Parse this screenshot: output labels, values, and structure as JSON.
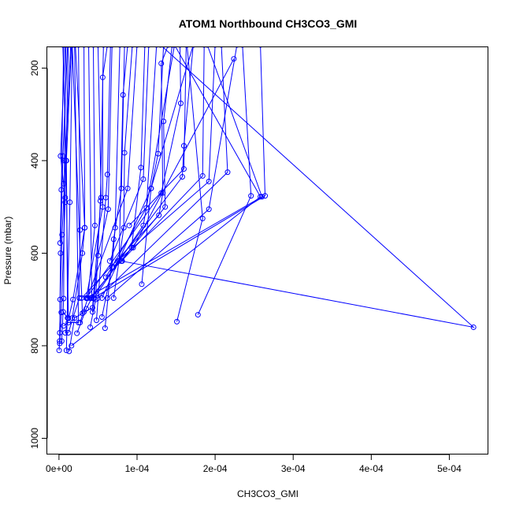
{
  "chart_data": {
    "type": "line",
    "title": "ATOM1 Northbound CH3CO3_GMI",
    "xlabel": "CH3CO3_GMI",
    "ylabel": "Pressure (mbar)",
    "xlim": [
      -1.5e-05,
      0.00055
    ],
    "ylim": [
      1035,
      155
    ],
    "y_reversed": true,
    "x_ticks": [
      0,
      0.0001,
      0.0002,
      0.0003,
      0.0004,
      0.0005
    ],
    "x_tick_labels": [
      "0e+00",
      "1e-04",
      "2e-04",
      "3e-04",
      "4e-04",
      "5e-04"
    ],
    "y_ticks": [
      200,
      400,
      600,
      800,
      1000
    ],
    "y_tick_labels": [
      "200",
      "400",
      "600",
      "800",
      "1000"
    ],
    "grid": false,
    "series_color": "#0000ff",
    "series": [
      {
        "values": [
          [
            2e-07,
            810
          ],
          [
            8e-07,
            790
          ],
          [
            1.5e-06,
            700
          ],
          [
            4e-06,
            560
          ],
          [
            1.5e-05,
            150
          ]
        ]
      },
      {
        "values": [
          [
            1e-06,
            795
          ],
          [
            3e-06,
            728
          ],
          [
            8e-06,
            480
          ],
          [
            1.2e-05,
            150
          ]
        ]
      },
      {
        "values": [
          [
            3.5e-06,
            790
          ],
          [
            6e-06,
            698
          ],
          [
            7e-06,
            400
          ],
          [
            9e-06,
            150
          ]
        ]
      },
      {
        "values": [
          [
            1e-06,
            772
          ],
          [
            2e-06,
            600
          ],
          [
            5e-06,
            390
          ],
          [
            1.1e-05,
            150
          ]
        ]
      },
      {
        "values": [
          [
            5.5e-06,
            727
          ],
          [
            1.1e-05,
            740
          ],
          [
            9.5e-06,
            400
          ],
          [
            1.6e-05,
            150
          ]
        ]
      },
      {
        "values": [
          [
            9.5e-06,
            810
          ],
          [
            1.4e-05,
            490
          ],
          [
            1.7e-05,
            150
          ]
        ]
      },
      {
        "values": [
          [
            1.3e-05,
            812
          ],
          [
            2e-05,
            740
          ],
          [
            3e-05,
            730
          ],
          [
            1.7e-05,
            150
          ]
        ]
      },
      {
        "values": [
          [
            6e-06,
            757
          ],
          [
            1.2e-05,
            750
          ],
          [
            2.5e-05,
            750
          ],
          [
            2e-05,
            150
          ]
        ]
      },
      {
        "values": [
          [
            8e-06,
            772
          ],
          [
            1.8e-05,
            700
          ],
          [
            3.3e-05,
            545
          ],
          [
            2.1e-05,
            150
          ]
        ]
      },
      {
        "values": [
          [
            1.2e-05,
            772
          ],
          [
            2.6e-05,
            697
          ],
          [
            2.7e-05,
            550
          ],
          [
            2.5e-05,
            150
          ]
        ]
      },
      {
        "values": [
          [
            1.7e-05,
            740
          ],
          [
            3e-05,
            600
          ],
          [
            3.3e-05,
            545
          ],
          [
            3.2e-05,
            150
          ]
        ]
      },
      {
        "values": [
          [
            2.3e-05,
            773
          ],
          [
            3.5e-05,
            720
          ],
          [
            4.2e-05,
            697
          ],
          [
            3.8e-05,
            150
          ]
        ]
      },
      {
        "values": [
          [
            2.7e-05,
            750
          ],
          [
            3.7e-05,
            697
          ],
          [
            4.6e-05,
            540
          ],
          [
            4.4e-05,
            150
          ]
        ]
      },
      {
        "values": [
          [
            3.2e-05,
            727
          ],
          [
            4.3e-05,
            718
          ],
          [
            5.4e-05,
            480
          ],
          [
            5e-05,
            150
          ]
        ]
      },
      {
        "values": [
          [
            4e-05,
            760
          ],
          [
            4.7e-05,
            700
          ],
          [
            5.3e-05,
            487
          ],
          [
            5.7e-05,
            150
          ]
        ]
      },
      {
        "values": [
          [
            4.8e-05,
            745
          ],
          [
            6e-05,
            480
          ],
          [
            6.2e-05,
            430
          ],
          [
            6.6e-05,
            150
          ]
        ]
      },
      {
        "values": [
          [
            3.5e-05,
            697
          ],
          [
            5.6e-05,
            500
          ],
          [
            5.6e-05,
            220
          ],
          [
            6.2e-05,
            150
          ]
        ]
      },
      {
        "values": [
          [
            4.3e-05,
            727
          ],
          [
            5e-05,
            605
          ],
          [
            6.3e-05,
            505
          ],
          [
            6.8e-05,
            150
          ]
        ]
      },
      {
        "values": [
          [
            5.5e-05,
            738
          ],
          [
            6.8e-05,
            630
          ],
          [
            7.2e-05,
            545
          ],
          [
            7.8e-05,
            150
          ]
        ]
      },
      {
        "values": [
          [
            5.9e-05,
            762
          ],
          [
            7e-05,
            570
          ],
          [
            8e-05,
            460
          ],
          [
            8.4e-05,
            150
          ]
        ]
      },
      {
        "values": [
          [
            4.2e-05,
            697
          ],
          [
            7.7e-05,
            617
          ],
          [
            8.2e-05,
            258
          ],
          [
            8.8e-05,
            150
          ]
        ]
      },
      {
        "values": [
          [
            7e-05,
            697
          ],
          [
            8.3e-05,
            545
          ],
          [
            8.4e-05,
            383
          ],
          [
            9.4e-05,
            150
          ]
        ]
      },
      {
        "values": [
          [
            3.6e-05,
            697
          ],
          [
            8.8e-05,
            460
          ],
          [
            0.0001,
            150
          ]
        ]
      },
      {
        "values": [
          [
            8.1e-05,
            617
          ],
          [
            9.3e-05,
            588
          ],
          [
            0.000105,
            415
          ],
          [
            0.00011,
            150
          ]
        ]
      },
      {
        "values": [
          [
            6.5e-05,
            617
          ],
          [
            0.000108,
            440
          ],
          [
            0.000115,
            150
          ]
        ]
      },
      {
        "values": [
          [
            6e-05,
            652
          ],
          [
            0.000112,
            502
          ],
          [
            0.000125,
            150
          ]
        ]
      },
      {
        "values": [
          [
            0.000106,
            667
          ],
          [
            0.000118,
            460
          ],
          [
            0.000127,
            385
          ],
          [
            0.000134,
            150
          ]
        ]
      },
      {
        "values": [
          [
            2.9e-05,
            697
          ],
          [
            0.000128,
            518
          ],
          [
            0.000133,
            470
          ],
          [
            0.000131,
            190
          ],
          [
            0.00014,
            150
          ]
        ]
      },
      {
        "values": [
          [
            4e-05,
            697
          ],
          [
            0.000136,
            500
          ],
          [
            0.000134,
            315
          ],
          [
            0.000145,
            150
          ]
        ]
      },
      {
        "values": [
          [
            3.5e-05,
            697
          ],
          [
            0.000131,
            470
          ],
          [
            0.000156,
            276
          ],
          [
            0.000155,
            150
          ]
        ]
      },
      {
        "values": [
          [
            9e-05,
            540
          ],
          [
            0.00016,
            418
          ],
          [
            0.000163,
            150
          ]
        ]
      },
      {
        "values": [
          [
            7e-05,
            630
          ],
          [
            0.000158,
            435
          ],
          [
            0.00016,
            368
          ],
          [
            0.000172,
            150
          ]
        ]
      },
      {
        "values": [
          [
            8e-05,
            617
          ],
          [
            0.000184,
            433
          ],
          [
            0.000186,
            150
          ]
        ]
      },
      {
        "values": [
          [
            7.5e-05,
            617
          ],
          [
            0.000192,
            445
          ],
          [
            0.0002,
            150
          ]
        ]
      },
      {
        "values": [
          [
            5e-05,
            697
          ],
          [
            0.000216,
            425
          ],
          [
            0.000208,
            150
          ]
        ]
      },
      {
        "values": [
          [
            9.5e-05,
            588
          ],
          [
            0.000224,
            180
          ]
        ]
      },
      {
        "values": [
          [
            5.5e-05,
            697
          ],
          [
            0.000118,
            460
          ],
          [
            0.000172,
            150
          ]
        ]
      },
      {
        "values": [
          [
            4.5e-05,
            697
          ],
          [
            0.000108,
            540
          ],
          [
            0.000148,
            150
          ]
        ]
      },
      {
        "values": [
          [
            0.000151,
            748
          ],
          [
            0.000184,
            525
          ],
          [
            0.000164,
            150
          ]
        ]
      },
      {
        "values": [
          [
            0.000178,
            733
          ],
          [
            0.000246,
            476
          ],
          [
            0.000235,
            150
          ]
        ]
      },
      {
        "values": [
          [
            6.2e-05,
            697
          ],
          [
            0.000192,
            505
          ],
          [
            0.000228,
            150
          ]
        ]
      },
      {
        "values": [
          [
            4.4e-05,
            697
          ],
          [
            0.000264,
            476
          ],
          [
            0.000258,
            150
          ]
        ]
      },
      {
        "values": [
          [
            1.6e-05,
            800
          ],
          [
            0.000258,
            478
          ],
          [
            0.000148,
            150
          ]
        ]
      },
      {
        "values": [
          [
            3.5e-05,
            697
          ],
          [
            0.00026,
            478
          ],
          [
            0.00019,
            150
          ]
        ]
      },
      {
        "values": [
          [
            8e-05,
            617
          ],
          [
            0.000531,
            760
          ],
          [
            0.00013,
            150
          ]
        ]
      },
      {
        "values": [
          [
            1.2e-05,
            740
          ],
          [
            9e-06,
            400
          ],
          [
            5e-06,
            150
          ]
        ]
      },
      {
        "values": [
          [
            1.5e-06,
            578
          ],
          [
            3e-06,
            463
          ],
          [
            6e-06,
            150
          ]
        ]
      },
      {
        "values": [
          [
            8e-06,
            490
          ],
          [
            6e-06,
            450
          ],
          [
            2e-06,
            390
          ],
          [
            8e-06,
            150
          ]
        ]
      }
    ]
  }
}
